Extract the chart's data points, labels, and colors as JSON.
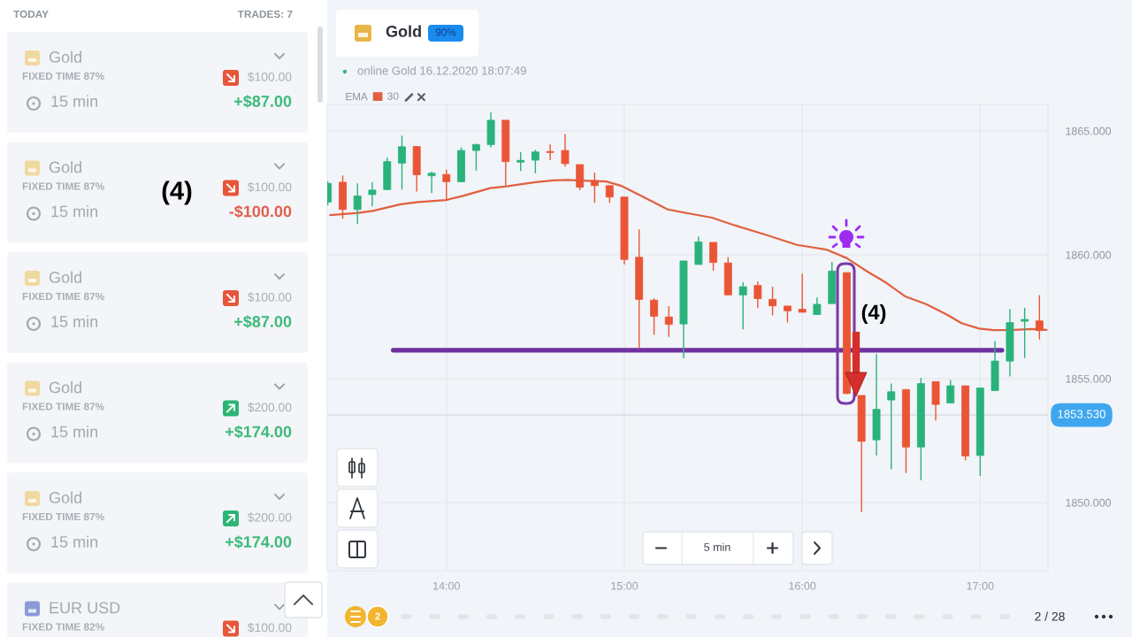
{
  "chart_data": [
    {
      "type": "other",
      "annotations": [
        "TODAY",
        "TRADES: 7",
        "Gold",
        "FIXED TIME 87%",
        "$100.00",
        "15 min",
        "+$87.00",
        "Gold",
        "FIXED TIME 87%",
        "$100.00",
        "15 min",
        "-$100.00",
        "Gold",
        "FIXED TIME 87%",
        "$100.00",
        "15 min",
        "+$87.00",
        "Gold",
        "FIXED TIME 87%",
        "$200.00",
        "15 min",
        "+$174.00",
        "Gold",
        "FIXED TIME 87%",
        "$200.00",
        "15 min",
        "+$174.00",
        "EUR USD",
        "FIXED TIME 82%",
        "$100.00",
        "(4)"
      ],
      "colors": [
        "#f0d9a0",
        "#e8553a",
        "#3dba7a",
        "#f0d9a0",
        "#e8553a",
        "#e0604c",
        "#f0d9a0",
        "#e8553a",
        "#3dba7a",
        "#f0d9a0",
        "#2bb673",
        "#3dba7a",
        "#f0d9a0",
        "#2bb673",
        "#3dba7a",
        "#8a9bd8",
        "#e8553a"
      ]
    },
    {
      "type": "candlestick",
      "x": [
        13.333,
        13.417,
        13.5,
        13.583,
        13.667,
        13.75,
        13.833,
        13.917,
        14.0,
        14.083,
        14.167,
        14.25,
        14.333,
        14.417,
        14.5,
        14.583,
        14.667,
        14.75,
        14.833,
        14.917,
        15.0,
        15.083,
        15.167,
        15.25,
        15.333,
        15.417,
        15.5,
        15.583,
        15.667,
        15.75,
        15.833,
        15.917,
        16.0,
        16.083,
        16.167,
        16.25,
        16.333,
        16.417,
        16.5,
        16.583,
        16.667,
        16.75,
        16.833,
        16.917,
        17.0,
        17.083,
        17.167,
        17.25,
        17.333
      ],
      "ohlc": [
        [
          1862.13,
          1862.96,
          1862.01,
          1862.88
        ],
        [
          1862.93,
          1863.2,
          1861.45,
          1861.83
        ],
        [
          1861.83,
          1862.88,
          1861.24,
          1862.37
        ],
        [
          1862.43,
          1862.93,
          1861.95,
          1862.61
        ],
        [
          1862.63,
          1863.92,
          1862.63,
          1863.76
        ],
        [
          1863.7,
          1864.81,
          1862.63,
          1864.36
        ],
        [
          1864.37,
          1864.37,
          1862.55,
          1863.23
        ],
        [
          1863.19,
          1863.36,
          1862.49,
          1863.29
        ],
        [
          1863.24,
          1863.44,
          1862.19,
          1862.95
        ],
        [
          1862.95,
          1864.33,
          1862.95,
          1864.21
        ],
        [
          1864.21,
          1864.48,
          1863.4,
          1864.45
        ],
        [
          1864.45,
          1865.76,
          1864.33,
          1865.43
        ],
        [
          1865.43,
          1865.43,
          1862.79,
          1863.76
        ],
        [
          1863.74,
          1864.15,
          1863.38,
          1863.81
        ],
        [
          1863.82,
          1864.24,
          1863.29,
          1864.15
        ],
        [
          1864.17,
          1864.45,
          1863.82,
          1864.13
        ],
        [
          1864.21,
          1864.87,
          1863.56,
          1863.68
        ],
        [
          1863.64,
          1863.64,
          1862.61,
          1862.73
        ],
        [
          1862.99,
          1863.32,
          1862.1,
          1862.79
        ],
        [
          1862.79,
          1862.79,
          1862.1,
          1862.33
        ],
        [
          1862.33,
          1862.33,
          1859.61,
          1859.81
        ],
        [
          1859.9,
          1861.02,
          1856.21,
          1858.2
        ],
        [
          1858.17,
          1858.24,
          1856.77,
          1857.52
        ],
        [
          1857.49,
          1857.93,
          1856.69,
          1857.19
        ],
        [
          1857.21,
          1859.75,
          1855.82,
          1859.75
        ],
        [
          1859.61,
          1860.74,
          1859.61,
          1860.52
        ],
        [
          1860.5,
          1860.5,
          1859.36,
          1859.69
        ],
        [
          1859.67,
          1859.9,
          1858.38,
          1858.38
        ],
        [
          1858.38,
          1858.89,
          1856.99,
          1858.71
        ],
        [
          1858.76,
          1858.92,
          1857.85,
          1858.23
        ],
        [
          1858.2,
          1858.71,
          1857.55,
          1857.94
        ],
        [
          1857.93,
          1857.93,
          1857.27,
          1857.74
        ],
        [
          1857.8,
          1859.24,
          1857.68,
          1857.68
        ],
        [
          1857.59,
          1858.28,
          1857.59,
          1858.0
        ],
        [
          1858.03,
          1859.71,
          1858.03,
          1859.34
        ],
        [
          1859.28,
          1859.28,
          1854.38,
          1854.4
        ],
        [
          1854.32,
          1854.32,
          1849.62,
          1852.47
        ],
        [
          1852.53,
          1855.99,
          1851.9,
          1853.76
        ],
        [
          1854.14,
          1854.8,
          1851.34,
          1854.47
        ],
        [
          1854.56,
          1854.56,
          1851.19,
          1852.24
        ],
        [
          1852.24,
          1855.03,
          1850.9,
          1854.8
        ],
        [
          1854.88,
          1854.88,
          1853.31,
          1853.96
        ],
        [
          1854.02,
          1854.95,
          1854.02,
          1854.71
        ],
        [
          1854.71,
          1854.71,
          1851.7,
          1851.88
        ],
        [
          1851.9,
          1854.62,
          1851.07,
          1854.62
        ],
        [
          1854.52,
          1856.52,
          1854.52,
          1855.71
        ],
        [
          1855.71,
          1857.81,
          1855.09,
          1857.26
        ],
        [
          1857.32,
          1857.86,
          1855.83,
          1857.39
        ],
        [
          1857.33,
          1858.37,
          1856.58,
          1856.94
        ]
      ],
      "colors": [
        "#2ab27b",
        "#ea5535",
        "#2ab27b",
        "#2ab27b",
        "#2ab27b",
        "#2ab27b",
        "#ea5535",
        "#2ab27b",
        "#ea5535",
        "#2ab27b",
        "#2ab27b",
        "#2ab27b",
        "#ea5535",
        "#2ab27b",
        "#2ab27b",
        "#ea5535",
        "#ea5535",
        "#ea5535",
        "#ea5535",
        "#ea5535",
        "#ea5535",
        "#ea5535",
        "#ea5535",
        "#ea5535",
        "#2ab27b",
        "#2ab27b",
        "#ea5535",
        "#ea5535",
        "#2ab27b",
        "#ea5535",
        "#ea5535",
        "#ea5535",
        "#ea5535",
        "#2ab27b",
        "#2ab27b",
        "#ea5535",
        "#ea5535",
        "#2ab27b",
        "#2ab27b",
        "#ea5535",
        "#2ab27b",
        "#ea5535",
        "#2ab27b",
        "#ea5535",
        "#2ab27b",
        "#2ab27b",
        "#2ab27b",
        "#2ab27b",
        "#ea5535"
      ],
      "series": [
        {
          "type": "line",
          "name": "EMA",
          "color": "#e0603f",
          "x": [
            13.347,
            13.503,
            13.586,
            13.743,
            13.842,
            13.998,
            14.089,
            14.246,
            14.337,
            14.502,
            14.601,
            14.683,
            14.733,
            14.898,
            14.98,
            15.096,
            15.244,
            15.376,
            15.492,
            15.624,
            15.789,
            15.97,
            16.135,
            16.251,
            16.366,
            16.465,
            16.581,
            16.696,
            16.812,
            16.895,
            16.994,
            17.076,
            17.192,
            17.291,
            17.373
          ],
          "values": [
            1861.6,
            1861.69,
            1861.77,
            1862.04,
            1862.13,
            1862.21,
            1862.37,
            1862.69,
            1862.76,
            1862.93,
            1863.0,
            1863.02,
            1863.0,
            1862.96,
            1862.79,
            1862.37,
            1861.83,
            1861.65,
            1861.5,
            1861.18,
            1860.82,
            1860.4,
            1860.21,
            1859.86,
            1859.32,
            1858.9,
            1858.31,
            1858.01,
            1857.59,
            1857.24,
            1857.02,
            1856.96,
            1856.97,
            1857.0,
            1856.97
          ]
        },
        {
          "type": "line",
          "color": "#7030a0",
          "x": [
            13.701,
            17.122
          ],
          "values": [
            1856.15,
            1856.15
          ]
        }
      ],
      "xlim": [
        13.33,
        17.381
      ],
      "ylim": [
        1847.25,
        1866.07
      ],
      "xticks": [
        {
          "value": 14,
          "label": "14:00"
        },
        {
          "value": 15,
          "label": "15:00"
        },
        {
          "value": 16,
          "label": "16:00"
        },
        {
          "value": 17,
          "label": "17:00"
        }
      ],
      "yticks": [
        {
          "value": 1850,
          "label": "1850.000"
        },
        {
          "value": 1855,
          "label": "1855.000"
        },
        {
          "value": 1860,
          "label": "1860.000"
        },
        {
          "value": 1865,
          "label": "1865.000"
        }
      ],
      "ref_lines": [
        {
          "axis": "y",
          "value": 1853.53,
          "label": "1853.530",
          "color": "#d5dae0"
        }
      ],
      "annotations": [
        "Gold",
        "90%",
        "online Gold 16.12.2020 18:07:49",
        "30",
        "(4)",
        "5 min",
        "2",
        "2 / 28"
      ],
      "grid": true,
      "legend": "top left"
    }
  ]
}
